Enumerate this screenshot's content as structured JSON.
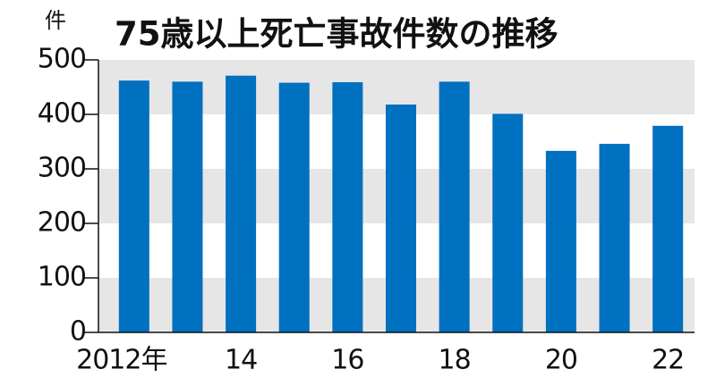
{
  "chart_data": {
    "type": "bar",
    "title": "75歳以上死亡事故件数の推移",
    "y_label": "件",
    "categories": [
      "2012年",
      null,
      "14",
      null,
      "16",
      null,
      "18",
      null,
      "20",
      null,
      "22"
    ],
    "values": [
      462,
      460,
      471,
      458,
      459,
      418,
      460,
      401,
      333,
      346,
      379
    ],
    "color": "#0070c0",
    "band_color": "#e6e6e6",
    "ylim": [
      0,
      500
    ],
    "yticks": [
      0,
      100,
      200,
      300,
      400,
      500
    ],
    "grid": true
  }
}
